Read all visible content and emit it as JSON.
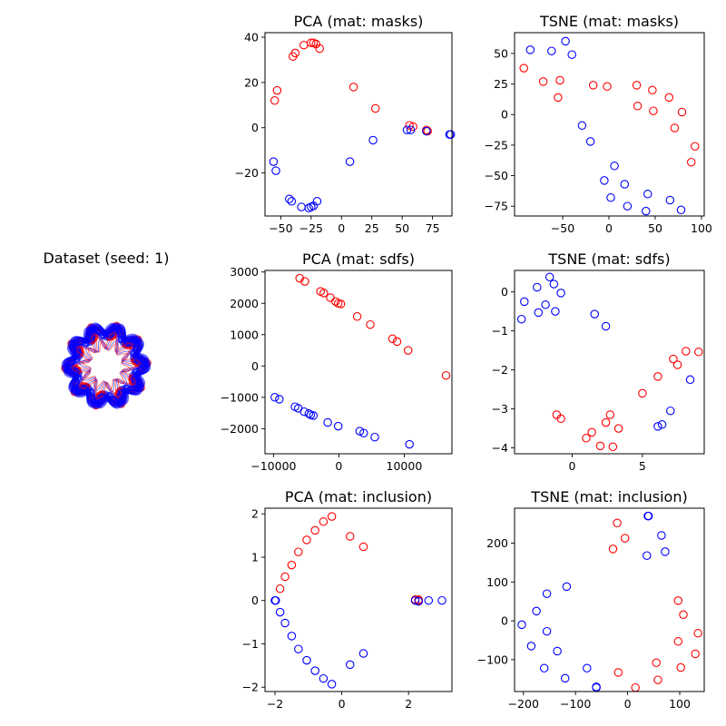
{
  "dataset_panel": {
    "title": "Dataset (seed: 1)"
  },
  "colors": {
    "class_a": "#ff0000",
    "class_b": "#0000ff"
  },
  "chart_data": [
    {
      "id": "pca-masks",
      "type": "scatter",
      "title": "PCA (mat: masks)",
      "xlim": [
        -63,
        91
      ],
      "ylim": [
        -39,
        42
      ],
      "xticks": [
        -50,
        -25,
        0,
        25,
        50,
        75
      ],
      "yticks": [
        -20,
        0,
        20,
        40
      ],
      "grid": false,
      "series": [
        {
          "color": "#ff0000",
          "points": [
            [
              -55,
              12
            ],
            [
              -53,
              16.5
            ],
            [
              -40,
              31.5
            ],
            [
              -38,
              33
            ],
            [
              -31,
              36.5
            ],
            [
              -25,
              37.5
            ],
            [
              -23,
              37.5
            ],
            [
              -21,
              37
            ],
            [
              -18,
              35
            ],
            [
              10,
              18
            ],
            [
              28,
              8.5
            ],
            [
              56,
              1
            ],
            [
              59,
              0.5
            ],
            [
              70,
              -1
            ],
            [
              71,
              -1.5
            ]
          ]
        },
        {
          "color": "#0000ff",
          "points": [
            [
              -56,
              -15
            ],
            [
              -54,
              -19
            ],
            [
              -43,
              -31.5
            ],
            [
              -41,
              -32.5
            ],
            [
              -33,
              -35
            ],
            [
              -27,
              -35.5
            ],
            [
              -25,
              -35
            ],
            [
              -23,
              -34.5
            ],
            [
              -20,
              -32.5
            ],
            [
              7,
              -15
            ],
            [
              26,
              -5.5
            ],
            [
              54,
              -1
            ],
            [
              57,
              -1
            ],
            [
              70,
              -1.5
            ],
            [
              89,
              -3
            ],
            [
              90,
              -3
            ]
          ]
        }
      ]
    },
    {
      "id": "tsne-masks",
      "type": "scatter",
      "title": "TSNE (mat: masks)",
      "xlim": [
        -102,
        103
      ],
      "ylim": [
        -83,
        67
      ],
      "xticks": [
        -50,
        0,
        50,
        100
      ],
      "yticks": [
        -75,
        -50,
        -25,
        0,
        25,
        50
      ],
      "grid": false,
      "series": [
        {
          "color": "#ff0000",
          "points": [
            [
              -92,
              38
            ],
            [
              -71,
              27
            ],
            [
              -53,
              28
            ],
            [
              -55,
              14
            ],
            [
              -17,
              24
            ],
            [
              -2,
              23
            ],
            [
              30,
              24
            ],
            [
              31,
              7
            ],
            [
              47,
              20
            ],
            [
              48,
              3
            ],
            [
              65,
              14
            ],
            [
              71,
              -11
            ],
            [
              79,
              2
            ],
            [
              89,
              -39
            ],
            [
              93,
              -26
            ]
          ]
        },
        {
          "color": "#0000ff",
          "points": [
            [
              -85,
              53
            ],
            [
              -62,
              52
            ],
            [
              -47,
              60
            ],
            [
              -40,
              49
            ],
            [
              -29,
              -9
            ],
            [
              -20,
              -22
            ],
            [
              -5,
              -54
            ],
            [
              2,
              -68
            ],
            [
              6,
              -42
            ],
            [
              17,
              -57
            ],
            [
              20,
              -75
            ],
            [
              42,
              -65
            ],
            [
              40,
              -79
            ],
            [
              66,
              -70
            ],
            [
              78,
              -78
            ]
          ]
        }
      ]
    },
    {
      "id": "pca-sdfs",
      "type": "scatter",
      "title": "PCA (mat: sdfs)",
      "xlim": [
        -11300,
        17300
      ],
      "ylim": [
        -2800,
        3050
      ],
      "xticks": [
        -10000,
        0,
        10000
      ],
      "yticks": [
        -2000,
        -1000,
        0,
        1000,
        2000,
        3000
      ],
      "grid": false,
      "series": [
        {
          "color": "#ff0000",
          "points": [
            [
              -6000,
              2800
            ],
            [
              -5200,
              2700
            ],
            [
              -2800,
              2380
            ],
            [
              -2300,
              2330
            ],
            [
              -1300,
              2180
            ],
            [
              -500,
              2060
            ],
            [
              -100,
              2000
            ],
            [
              300,
              1980
            ],
            [
              2800,
              1580
            ],
            [
              4800,
              1320
            ],
            [
              8200,
              870
            ],
            [
              8900,
              780
            ],
            [
              10600,
              500
            ],
            [
              16400,
              -300
            ]
          ]
        },
        {
          "color": "#0000ff",
          "points": [
            [
              -9800,
              -1000
            ],
            [
              -9100,
              -1060
            ],
            [
              -6700,
              -1300
            ],
            [
              -6200,
              -1350
            ],
            [
              -5300,
              -1460
            ],
            [
              -4600,
              -1520
            ],
            [
              -4300,
              -1560
            ],
            [
              -3900,
              -1580
            ],
            [
              -1700,
              -1800
            ],
            [
              -100,
              -1920
            ],
            [
              3200,
              -2080
            ],
            [
              3800,
              -2140
            ],
            [
              5500,
              -2270
            ],
            [
              10800,
              -2500
            ]
          ]
        }
      ]
    },
    {
      "id": "tsne-sdfs",
      "type": "scatter",
      "title": "TSNE (mat: sdfs)",
      "xlim": [
        -4.1,
        9.4
      ],
      "ylim": [
        -4.15,
        0.55
      ],
      "xticks": [
        0,
        5
      ],
      "yticks": [
        -4,
        -3,
        -2,
        -1,
        0
      ],
      "grid": false,
      "series": [
        {
          "color": "#ff0000",
          "points": [
            [
              -1.1,
              -3.15
            ],
            [
              -0.8,
              -3.25
            ],
            [
              1.0,
              -3.75
            ],
            [
              1.4,
              -3.6
            ],
            [
              2.0,
              -3.95
            ],
            [
              2.4,
              -3.35
            ],
            [
              2.7,
              -3.15
            ],
            [
              2.9,
              -3.97
            ],
            [
              3.3,
              -3.5
            ],
            [
              5.0,
              -2.6
            ],
            [
              6.1,
              -2.17
            ],
            [
              7.2,
              -1.72
            ],
            [
              7.5,
              -1.87
            ],
            [
              8.1,
              -1.52
            ],
            [
              9.0,
              -1.54
            ]
          ]
        },
        {
          "color": "#0000ff",
          "points": [
            [
              -3.6,
              -0.7
            ],
            [
              -3.4,
              -0.25
            ],
            [
              -2.5,
              0.12
            ],
            [
              -2.4,
              -0.53
            ],
            [
              -1.9,
              -0.33
            ],
            [
              -1.6,
              0.38
            ],
            [
              -1.3,
              0.2
            ],
            [
              -1.2,
              -0.5
            ],
            [
              -0.8,
              -0.03
            ],
            [
              1.6,
              -0.57
            ],
            [
              2.4,
              -0.88
            ],
            [
              6.1,
              -3.45
            ],
            [
              6.4,
              -3.4
            ],
            [
              7.0,
              -3.05
            ],
            [
              8.4,
              -2.25
            ]
          ]
        }
      ]
    },
    {
      "id": "pca-inclusion",
      "type": "scatter",
      "title": "PCA (mat: inclusion)",
      "xlim": [
        -2.3,
        3.3
      ],
      "ylim": [
        -2.1,
        2.13
      ],
      "xticks": [
        -2,
        0,
        2
      ],
      "yticks": [
        -2,
        -1,
        0,
        1,
        2
      ],
      "grid": false,
      "series": [
        {
          "color": "#ff0000",
          "points": [
            [
              -1.85,
              0.27
            ],
            [
              -1.7,
              0.55
            ],
            [
              -1.5,
              0.82
            ],
            [
              -1.3,
              1.12
            ],
            [
              -1.05,
              1.4
            ],
            [
              -0.8,
              1.62
            ],
            [
              -0.55,
              1.82
            ],
            [
              -0.3,
              1.94
            ],
            [
              0.25,
              1.48
            ],
            [
              0.65,
              1.24
            ],
            [
              2.2,
              0.02
            ],
            [
              2.3,
              0.0
            ],
            [
              2.3,
              0.02
            ]
          ]
        },
        {
          "color": "#0000ff",
          "points": [
            [
              -2.0,
              0.0
            ],
            [
              -1.98,
              0.0
            ],
            [
              -1.85,
              -0.27
            ],
            [
              -1.7,
              -0.52
            ],
            [
              -1.5,
              -0.82
            ],
            [
              -1.3,
              -1.12
            ],
            [
              -1.05,
              -1.38
            ],
            [
              -0.8,
              -1.62
            ],
            [
              -0.55,
              -1.8
            ],
            [
              -0.3,
              -1.93
            ],
            [
              0.25,
              -1.48
            ],
            [
              0.65,
              -1.22
            ],
            [
              2.2,
              0.0
            ],
            [
              2.3,
              -0.02
            ],
            [
              2.6,
              0.0
            ],
            [
              3.0,
              0.0
            ]
          ]
        }
      ]
    },
    {
      "id": "tsne-inclusion",
      "type": "scatter",
      "title": "TSNE (mat: inclusion)",
      "xlim": [
        -217,
        147
      ],
      "ylim": [
        -182,
        290
      ],
      "xticks": [
        -200,
        -100,
        0,
        100
      ],
      "yticks": [
        -100,
        0,
        100,
        200
      ],
      "grid": false,
      "series": [
        {
          "color": "#ff0000",
          "points": [
            [
              -20,
              252
            ],
            [
              -5,
              213
            ],
            [
              -28,
              185
            ],
            [
              -18,
              -133
            ],
            [
              15,
              -172
            ],
            [
              55,
              -108
            ],
            [
              58,
              -152
            ],
            [
              97,
              52
            ],
            [
              97,
              -53
            ],
            [
              102,
              -120
            ],
            [
              107,
              16
            ],
            [
              130,
              -85
            ],
            [
              135,
              -32
            ]
          ]
        },
        {
          "color": "#0000ff",
          "points": [
            [
              40,
              270
            ],
            [
              39,
              270
            ],
            [
              65,
              220
            ],
            [
              72,
              178
            ],
            [
              37,
              168
            ],
            [
              -203,
              -10
            ],
            [
              -185,
              -65
            ],
            [
              -175,
              25
            ],
            [
              -155,
              70
            ],
            [
              -155,
              -27
            ],
            [
              -160,
              -122
            ],
            [
              -135,
              -78
            ],
            [
              -117,
              88
            ],
            [
              -120,
              -148
            ],
            [
              -78,
              -122
            ],
            [
              -60,
              -172
            ],
            [
              -60,
              -170
            ]
          ]
        }
      ]
    }
  ]
}
